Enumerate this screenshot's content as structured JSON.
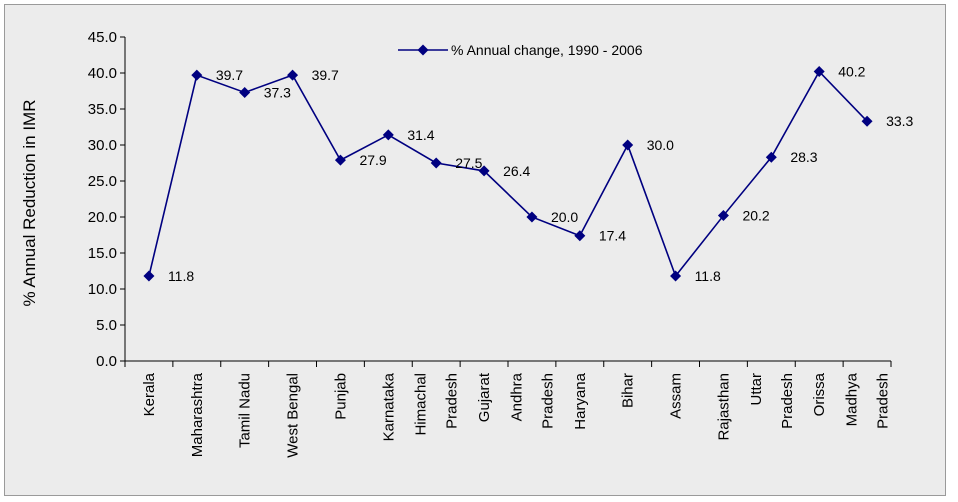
{
  "chart_data": {
    "type": "line",
    "title": "",
    "ylabel": "% Annual Reduction in IMR",
    "xlabel": "",
    "ylim": [
      0,
      45
    ],
    "ytick_step": 5,
    "grid": false,
    "legend_position": "top",
    "categories": [
      [
        "Kerala"
      ],
      [
        "Maharashtra"
      ],
      [
        "Tamil Nadu"
      ],
      [
        "West Bengal"
      ],
      [
        "Punjab"
      ],
      [
        "Karnataka"
      ],
      [
        "Himachal",
        "Pradesh"
      ],
      [
        "Gujarat"
      ],
      [
        "Andhra",
        "Pradesh"
      ],
      [
        "Haryana"
      ],
      [
        "Bihar"
      ],
      [
        "Assam"
      ],
      [
        "Rajasthan"
      ],
      [
        "Uttar",
        "Pradesh"
      ],
      [
        "Orissa"
      ],
      [
        "Madhya",
        "Pradesh"
      ]
    ],
    "series": [
      {
        "name": "% Annual change, 1990 - 2006",
        "color": "#000080",
        "marker": "diamond",
        "values": [
          11.8,
          39.7,
          37.3,
          39.7,
          27.9,
          31.4,
          27.5,
          26.4,
          20.0,
          17.4,
          30.0,
          11.8,
          20.2,
          28.3,
          40.2,
          33.3
        ],
        "labels": [
          "11.8",
          "39.7",
          "37.3",
          "39.7",
          "27.9",
          "31.4",
          "27.5",
          "26.4",
          "20.0",
          "17.4",
          "30.0",
          "11.8",
          "20.2",
          "28.3",
          "40.2",
          "33.3"
        ]
      }
    ]
  }
}
